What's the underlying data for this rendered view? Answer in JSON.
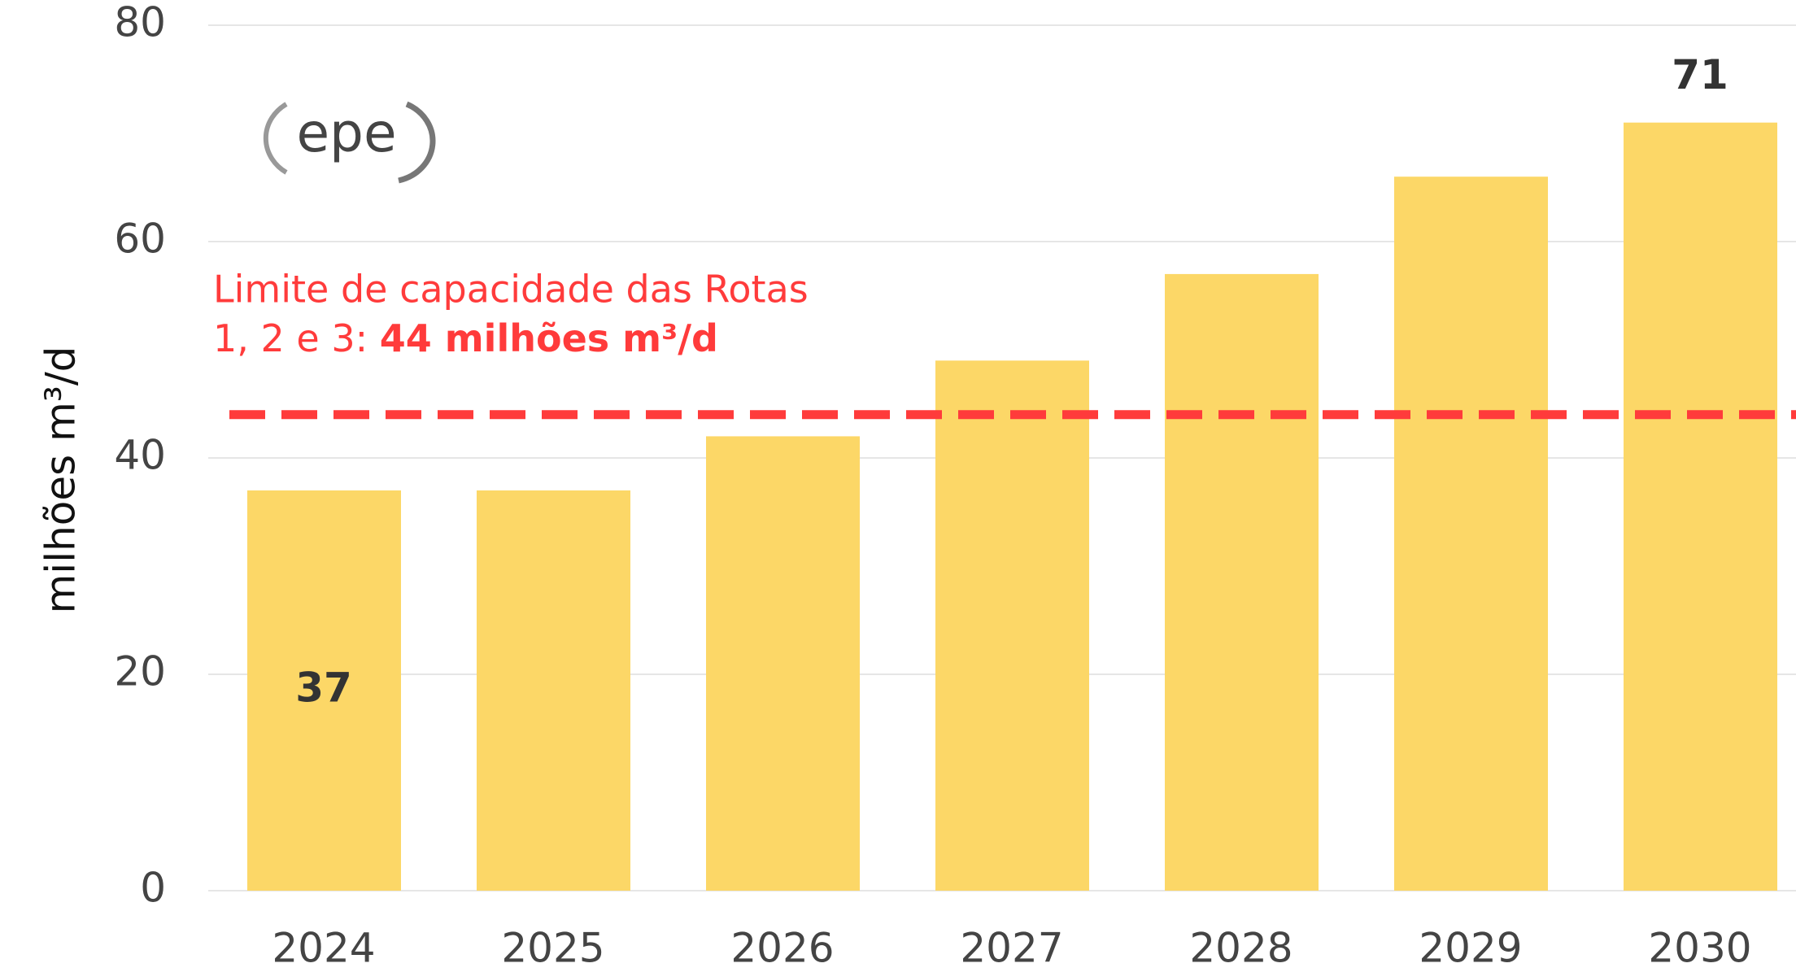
{
  "chart_data": {
    "type": "bar",
    "y_axis_label": "milhões m³/d",
    "categories": [
      "2024",
      "2025",
      "2026",
      "2027",
      "2028",
      "2029",
      "2030"
    ],
    "values": [
      37,
      37,
      42,
      49,
      57,
      66,
      71
    ],
    "value_labels": [
      "37",
      null,
      null,
      null,
      null,
      null,
      "71"
    ],
    "color": "#fcd767",
    "ylim": [
      0,
      80
    ],
    "yticks": [
      0,
      20,
      40,
      60,
      80
    ],
    "grid": true,
    "reference_line": {
      "value": 44,
      "color": "#ff3b3b",
      "label_line1": "Limite de capacidade das Rotas",
      "label_prefix": "1, 2 e 3: ",
      "label_bold": "44 milhões m³/d"
    },
    "logo": "epe"
  }
}
